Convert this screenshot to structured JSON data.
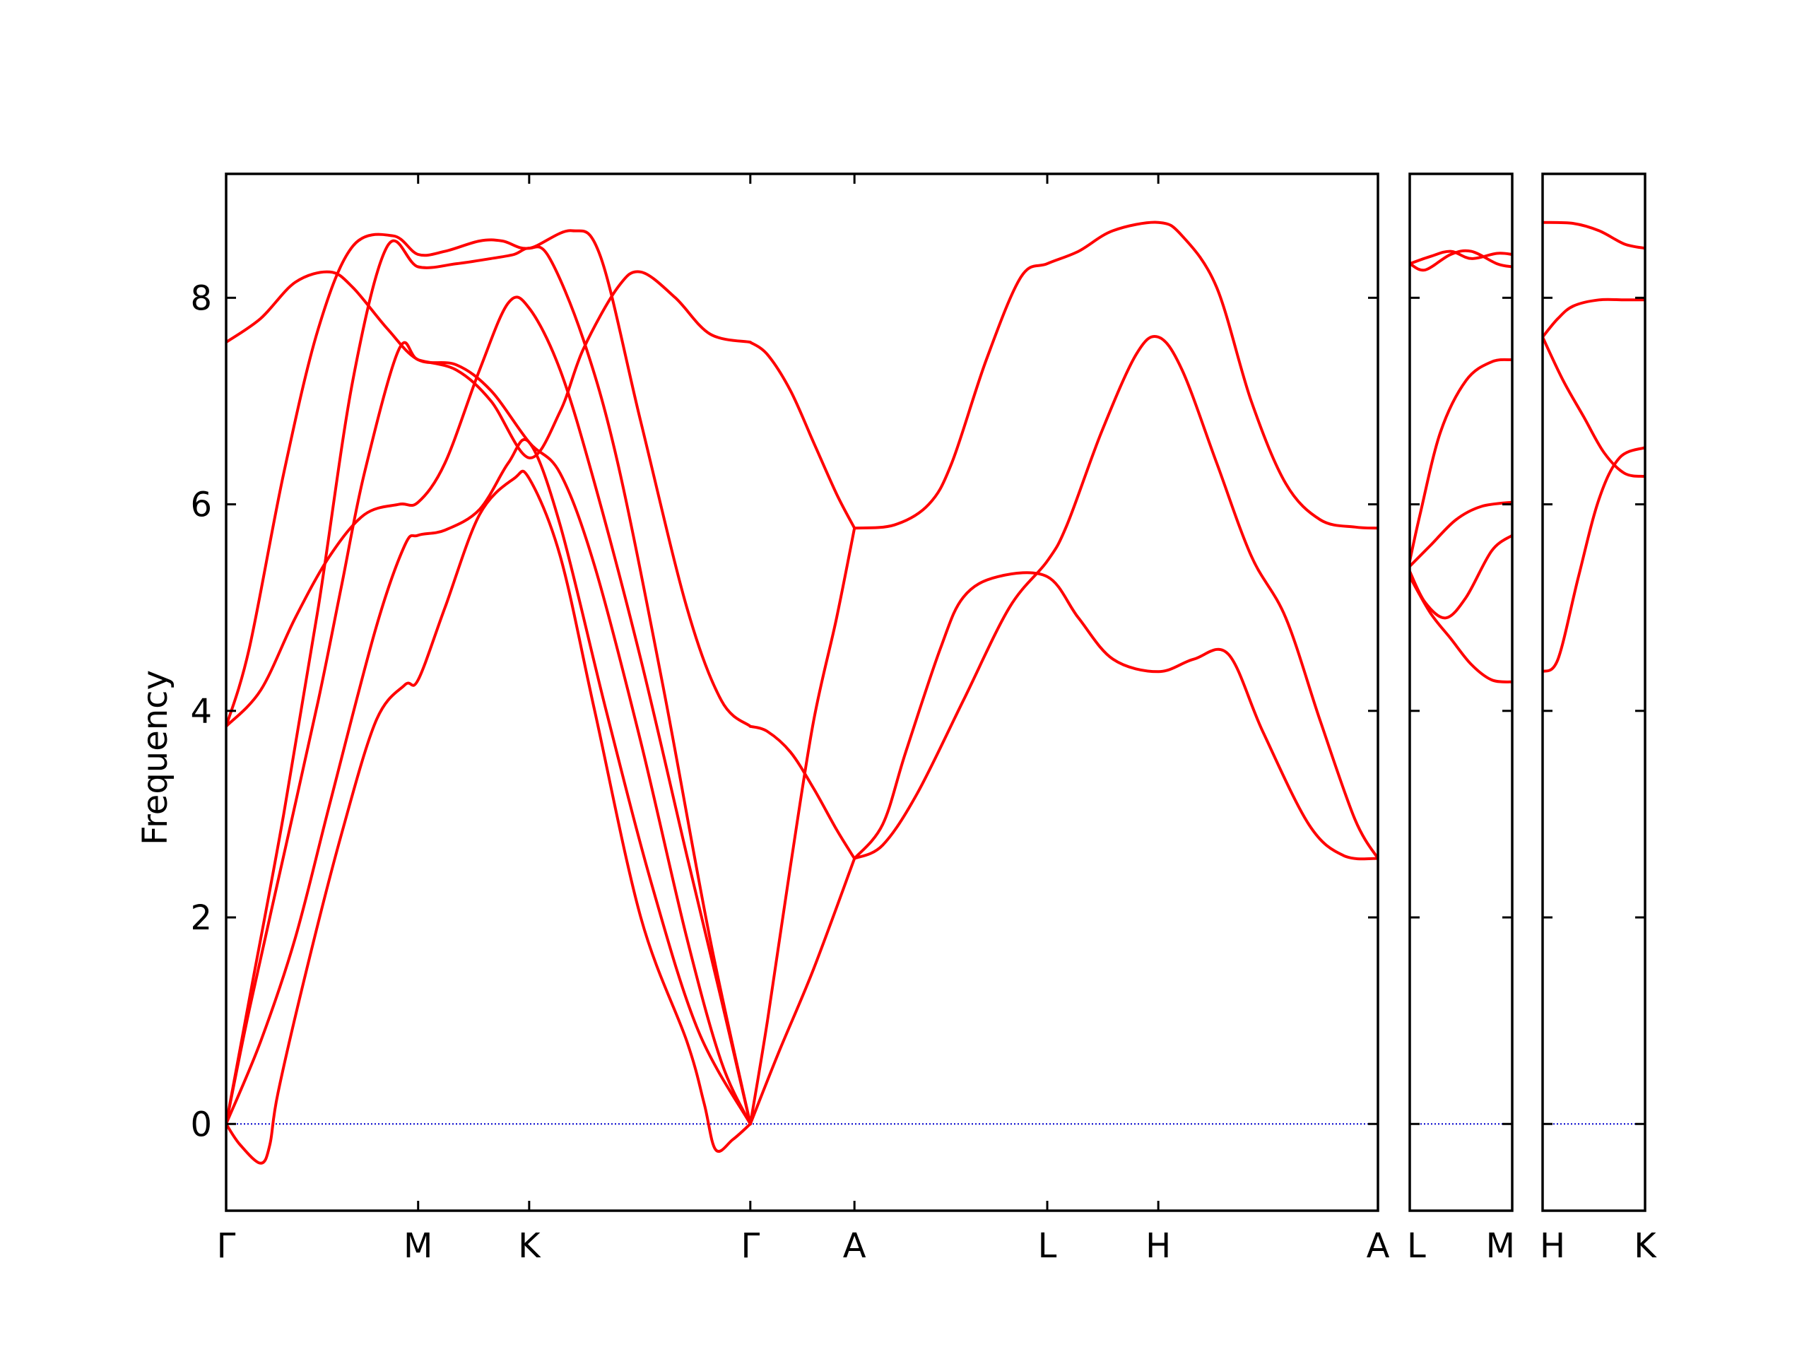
{
  "chart_data": {
    "type": "line",
    "title": "",
    "ylabel": "Frequency",
    "ylim": [
      -0.84,
      9.2
    ],
    "y_ticks": [
      "0",
      "2",
      "4",
      "6",
      "8"
    ],
    "y_tick_values": [
      0,
      2,
      4,
      6,
      8
    ],
    "grid": false,
    "line_color": "#ff0000",
    "zero_line_color": "#0000cc",
    "panels": [
      {
        "x_labels": [
          "Γ",
          "M",
          "K",
          "Γ",
          "A",
          "L",
          "H",
          "A"
        ],
        "x_positions": [
          0,
          0.1667,
          0.2631,
          0.4551,
          0.5455,
          0.7129,
          0.8093,
          1.0
        ]
      },
      {
        "x_labels": [
          "L",
          "M"
        ],
        "x_positions": [
          0,
          1
        ]
      },
      {
        "x_labels": [
          "H",
          "K"
        ],
        "x_positions": [
          0,
          1
        ]
      }
    ],
    "series": [
      {
        "panel": 0,
        "points": [
          [
            0,
            0
          ],
          [
            0.012,
            -0.2
          ],
          [
            0.03,
            -0.38
          ],
          [
            0.038,
            -0.2
          ],
          [
            0.045,
            0.3
          ],
          [
            0.07,
            1.5
          ],
          [
            0.1,
            2.8
          ],
          [
            0.13,
            3.9
          ],
          [
            0.155,
            4.25
          ],
          [
            0.1667,
            4.3
          ],
          [
            0.19,
            5.0
          ],
          [
            0.22,
            5.9
          ],
          [
            0.25,
            6.25
          ],
          [
            0.2631,
            6.25
          ],
          [
            0.29,
            5.5
          ],
          [
            0.32,
            4.0
          ],
          [
            0.36,
            2.0
          ],
          [
            0.4,
            0.8
          ],
          [
            0.415,
            0.2
          ],
          [
            0.425,
            -0.25
          ],
          [
            0.44,
            -0.15
          ],
          [
            0.4551,
            0
          ]
        ]
      },
      {
        "panel": 0,
        "points": [
          [
            0,
            0
          ],
          [
            0.03,
            0.8
          ],
          [
            0.06,
            1.8
          ],
          [
            0.09,
            3.1
          ],
          [
            0.13,
            4.8
          ],
          [
            0.155,
            5.6
          ],
          [
            0.1667,
            5.7
          ],
          [
            0.19,
            5.75
          ],
          [
            0.22,
            5.95
          ],
          [
            0.245,
            6.4
          ],
          [
            0.2631,
            6.6
          ],
          [
            0.29,
            5.8
          ],
          [
            0.33,
            4.0
          ],
          [
            0.37,
            2.3
          ],
          [
            0.41,
            0.9
          ],
          [
            0.4551,
            0
          ]
        ]
      },
      {
        "panel": 0,
        "points": [
          [
            0,
            0
          ],
          [
            0.02,
            1.2
          ],
          [
            0.05,
            3.0
          ],
          [
            0.08,
            5.0
          ],
          [
            0.11,
            7.2
          ],
          [
            0.14,
            8.5
          ],
          [
            0.1667,
            8.3
          ],
          [
            0.2,
            8.33
          ],
          [
            0.23,
            8.38
          ],
          [
            0.25,
            8.42
          ],
          [
            0.2631,
            8.48
          ],
          [
            0.28,
            8.4
          ],
          [
            0.31,
            7.6
          ],
          [
            0.34,
            6.4
          ],
          [
            0.38,
            4.2
          ],
          [
            0.42,
            1.8
          ],
          [
            0.4551,
            0
          ]
        ]
      },
      {
        "panel": 0,
        "points": [
          [
            0,
            3.85
          ],
          [
            0.02,
            4.6
          ],
          [
            0.05,
            6.3
          ],
          [
            0.08,
            7.7
          ],
          [
            0.11,
            8.5
          ],
          [
            0.145,
            8.6
          ],
          [
            0.1667,
            8.42
          ],
          [
            0.19,
            8.45
          ],
          [
            0.22,
            8.55
          ],
          [
            0.24,
            8.55
          ],
          [
            0.2631,
            8.48
          ],
          [
            0.3,
            8.65
          ],
          [
            0.325,
            8.4
          ],
          [
            0.36,
            6.8
          ],
          [
            0.4,
            5.0
          ],
          [
            0.43,
            4.1
          ],
          [
            0.4551,
            3.85
          ]
        ]
      },
      {
        "panel": 0,
        "points": [
          [
            0,
            3.85
          ],
          [
            0.03,
            4.2
          ],
          [
            0.06,
            4.9
          ],
          [
            0.09,
            5.5
          ],
          [
            0.12,
            5.9
          ],
          [
            0.15,
            6.0
          ],
          [
            0.1667,
            6.02
          ],
          [
            0.19,
            6.4
          ],
          [
            0.22,
            7.3
          ],
          [
            0.245,
            7.95
          ],
          [
            0.2631,
            7.9
          ],
          [
            0.29,
            7.3
          ],
          [
            0.32,
            6.2
          ],
          [
            0.36,
            4.5
          ],
          [
            0.4,
            2.6
          ],
          [
            0.43,
            1.2
          ],
          [
            0.4551,
            0
          ]
        ]
      },
      {
        "panel": 0,
        "points": [
          [
            0,
            7.57
          ],
          [
            0.03,
            7.8
          ],
          [
            0.06,
            8.15
          ],
          [
            0.09,
            8.25
          ],
          [
            0.11,
            8.1
          ],
          [
            0.14,
            7.7
          ],
          [
            0.1667,
            7.4
          ],
          [
            0.2,
            7.35
          ],
          [
            0.23,
            7.1
          ],
          [
            0.2631,
            6.6
          ],
          [
            0.29,
            6.3
          ],
          [
            0.32,
            5.4
          ],
          [
            0.36,
            3.7
          ],
          [
            0.4,
            1.8
          ],
          [
            0.43,
            0.6
          ],
          [
            0.4551,
            0
          ]
        ]
      },
      {
        "panel": 0,
        "points": [
          [
            0,
            0
          ],
          [
            0.02,
            1.1
          ],
          [
            0.05,
            2.6
          ],
          [
            0.08,
            4.1
          ],
          [
            0.1,
            5.2
          ],
          [
            0.12,
            6.3
          ],
          [
            0.15,
            7.5
          ],
          [
            0.1667,
            7.4
          ],
          [
            0.2,
            7.3
          ],
          [
            0.23,
            7.0
          ],
          [
            0.2631,
            6.45
          ],
          [
            0.29,
            6.9
          ],
          [
            0.31,
            7.5
          ],
          [
            0.34,
            8.1
          ],
          [
            0.36,
            8.25
          ],
          [
            0.39,
            8.0
          ],
          [
            0.42,
            7.65
          ],
          [
            0.4551,
            7.57
          ]
        ]
      },
      {
        "panel": 0,
        "points": [
          [
            0.4551,
            7.57
          ],
          [
            0.47,
            7.45
          ],
          [
            0.49,
            7.1
          ],
          [
            0.51,
            6.6
          ],
          [
            0.53,
            6.1
          ],
          [
            0.5455,
            5.77
          ]
        ]
      },
      {
        "panel": 0,
        "points": [
          [
            0.4551,
            3.85
          ],
          [
            0.47,
            3.8
          ],
          [
            0.49,
            3.6
          ],
          [
            0.51,
            3.25
          ],
          [
            0.53,
            2.85
          ],
          [
            0.5455,
            2.57
          ]
        ]
      },
      {
        "panel": 0,
        "points": [
          [
            0.4551,
            0
          ],
          [
            0.47,
            1.0
          ],
          [
            0.49,
            2.5
          ],
          [
            0.51,
            3.9
          ],
          [
            0.53,
            4.9
          ],
          [
            0.5455,
            5.77
          ]
        ]
      },
      {
        "panel": 0,
        "points": [
          [
            0.4551,
            0
          ],
          [
            0.48,
            0.7
          ],
          [
            0.51,
            1.5
          ],
          [
            0.5455,
            2.57
          ]
        ]
      },
      {
        "panel": 0,
        "points": [
          [
            0.5455,
            5.77
          ],
          [
            0.58,
            5.8
          ],
          [
            0.61,
            6.0
          ],
          [
            0.63,
            6.4
          ],
          [
            0.66,
            7.4
          ],
          [
            0.69,
            8.2
          ],
          [
            0.7129,
            8.33
          ],
          [
            0.74,
            8.45
          ],
          [
            0.77,
            8.65
          ],
          [
            0.8093,
            8.73
          ],
          [
            0.83,
            8.6
          ],
          [
            0.86,
            8.1
          ],
          [
            0.89,
            7.0
          ],
          [
            0.92,
            6.2
          ],
          [
            0.95,
            5.85
          ],
          [
            0.98,
            5.78
          ],
          [
            1.0,
            5.77
          ]
        ]
      },
      {
        "panel": 0,
        "points": [
          [
            0.5455,
            2.57
          ],
          [
            0.57,
            2.9
          ],
          [
            0.59,
            3.6
          ],
          [
            0.62,
            4.6
          ],
          [
            0.64,
            5.1
          ],
          [
            0.67,
            5.3
          ],
          [
            0.7129,
            5.3
          ],
          [
            0.74,
            4.9
          ],
          [
            0.77,
            4.5
          ],
          [
            0.8093,
            4.38
          ],
          [
            0.84,
            4.5
          ],
          [
            0.87,
            4.55
          ],
          [
            0.9,
            3.8
          ],
          [
            0.94,
            2.9
          ],
          [
            0.97,
            2.6
          ],
          [
            1.0,
            2.57
          ]
        ]
      },
      {
        "panel": 0,
        "points": [
          [
            0.5455,
            2.57
          ],
          [
            0.57,
            2.7
          ],
          [
            0.6,
            3.2
          ],
          [
            0.64,
            4.1
          ],
          [
            0.68,
            5.0
          ],
          [
            0.7129,
            5.45
          ],
          [
            0.73,
            5.8
          ],
          [
            0.76,
            6.7
          ],
          [
            0.79,
            7.45
          ],
          [
            0.8093,
            7.62
          ],
          [
            0.83,
            7.3
          ],
          [
            0.86,
            6.4
          ],
          [
            0.89,
            5.5
          ],
          [
            0.92,
            4.9
          ],
          [
            0.95,
            3.9
          ],
          [
            0.98,
            2.95
          ],
          [
            1.0,
            2.57
          ]
        ]
      },
      {
        "panel": 1,
        "points": [
          [
            0,
            8.33
          ],
          [
            0.15,
            8.27
          ],
          [
            0.4,
            8.42
          ],
          [
            0.6,
            8.45
          ],
          [
            0.85,
            8.33
          ],
          [
            1,
            8.3
          ]
        ]
      },
      {
        "panel": 1,
        "points": [
          [
            0,
            8.33
          ],
          [
            0.2,
            8.4
          ],
          [
            0.4,
            8.45
          ],
          [
            0.6,
            8.38
          ],
          [
            0.85,
            8.43
          ],
          [
            1,
            8.42
          ]
        ]
      },
      {
        "panel": 1,
        "points": [
          [
            0,
            5.45
          ],
          [
            0.1,
            5.9
          ],
          [
            0.3,
            6.7
          ],
          [
            0.55,
            7.2
          ],
          [
            0.8,
            7.38
          ],
          [
            1,
            7.4
          ]
        ]
      },
      {
        "panel": 1,
        "points": [
          [
            0,
            5.4
          ],
          [
            0.2,
            5.6
          ],
          [
            0.45,
            5.85
          ],
          [
            0.7,
            5.98
          ],
          [
            1,
            6.02
          ]
        ]
      },
      {
        "panel": 1,
        "points": [
          [
            0,
            5.35
          ],
          [
            0.15,
            5.05
          ],
          [
            0.35,
            4.9
          ],
          [
            0.55,
            5.1
          ],
          [
            0.8,
            5.55
          ],
          [
            1,
            5.7
          ]
        ]
      },
      {
        "panel": 1,
        "points": [
          [
            0,
            5.3
          ],
          [
            0.2,
            4.95
          ],
          [
            0.4,
            4.7
          ],
          [
            0.6,
            4.45
          ],
          [
            0.8,
            4.3
          ],
          [
            1,
            4.28
          ]
        ]
      },
      {
        "panel": 2,
        "points": [
          [
            0,
            8.73
          ],
          [
            0.3,
            8.72
          ],
          [
            0.55,
            8.65
          ],
          [
            0.8,
            8.52
          ],
          [
            1,
            8.48
          ]
        ]
      },
      {
        "panel": 2,
        "points": [
          [
            0,
            7.62
          ],
          [
            0.15,
            7.8
          ],
          [
            0.3,
            7.92
          ],
          [
            0.55,
            7.98
          ],
          [
            0.8,
            7.98
          ],
          [
            1,
            7.98
          ]
        ]
      },
      {
        "panel": 2,
        "points": [
          [
            0,
            7.62
          ],
          [
            0.2,
            7.2
          ],
          [
            0.4,
            6.85
          ],
          [
            0.6,
            6.5
          ],
          [
            0.8,
            6.3
          ],
          [
            1,
            6.27
          ]
        ]
      },
      {
        "panel": 2,
        "points": [
          [
            0,
            4.38
          ],
          [
            0.15,
            4.5
          ],
          [
            0.35,
            5.3
          ],
          [
            0.55,
            6.05
          ],
          [
            0.75,
            6.45
          ],
          [
            1,
            6.55
          ]
        ]
      }
    ]
  }
}
